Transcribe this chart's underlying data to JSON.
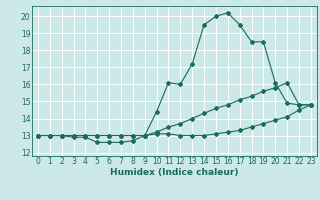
{
  "title": "",
  "xlabel": "Humidex (Indice chaleur)",
  "bg_color": "#cce8e8",
  "grid_color": "#ffffff",
  "line_color": "#1a6b5a",
  "xlim": [
    -0.5,
    23.5
  ],
  "ylim": [
    11.8,
    20.6
  ],
  "yticks": [
    12,
    13,
    14,
    15,
    16,
    17,
    18,
    19,
    20
  ],
  "xticks": [
    0,
    1,
    2,
    3,
    4,
    5,
    6,
    7,
    8,
    9,
    10,
    11,
    12,
    13,
    14,
    15,
    16,
    17,
    18,
    19,
    20,
    21,
    22,
    23
  ],
  "line1_x": [
    0,
    1,
    2,
    3,
    4,
    5,
    6,
    7,
    8,
    9,
    10,
    11,
    12,
    13,
    14,
    15,
    16,
    17,
    18,
    19,
    20,
    21,
    22,
    23
  ],
  "line1_y": [
    13.0,
    13.0,
    13.0,
    13.0,
    13.0,
    13.0,
    13.0,
    13.0,
    13.0,
    13.0,
    14.4,
    16.1,
    16.0,
    17.2,
    19.5,
    20.0,
    20.2,
    19.5,
    18.5,
    18.5,
    16.1,
    14.9,
    14.8,
    14.8
  ],
  "line2_x": [
    0,
    1,
    2,
    3,
    4,
    5,
    6,
    7,
    8,
    9,
    10,
    11,
    12,
    13,
    14,
    15,
    16,
    17,
    18,
    19,
    20,
    21,
    22,
    23
  ],
  "line2_y": [
    13.0,
    13.0,
    13.0,
    13.0,
    13.0,
    13.0,
    13.0,
    13.0,
    13.0,
    13.0,
    13.2,
    13.5,
    13.7,
    14.0,
    14.3,
    14.6,
    14.8,
    15.1,
    15.3,
    15.6,
    15.8,
    16.1,
    14.8,
    14.8
  ],
  "line3_x": [
    0,
    1,
    2,
    3,
    4,
    5,
    6,
    7,
    8,
    9,
    10,
    11,
    12,
    13,
    14,
    15,
    16,
    17,
    18,
    19,
    20,
    21,
    22,
    23
  ],
  "line3_y": [
    13.0,
    13.0,
    13.0,
    12.9,
    12.9,
    12.6,
    12.6,
    12.6,
    12.7,
    13.0,
    13.1,
    13.1,
    13.0,
    13.0,
    13.0,
    13.1,
    13.2,
    13.3,
    13.5,
    13.7,
    13.9,
    14.1,
    14.5,
    14.8
  ],
  "marker": "D",
  "markersize": 2.0,
  "linewidth": 0.8,
  "tick_fontsize": 5.5,
  "xlabel_fontsize": 6.5
}
